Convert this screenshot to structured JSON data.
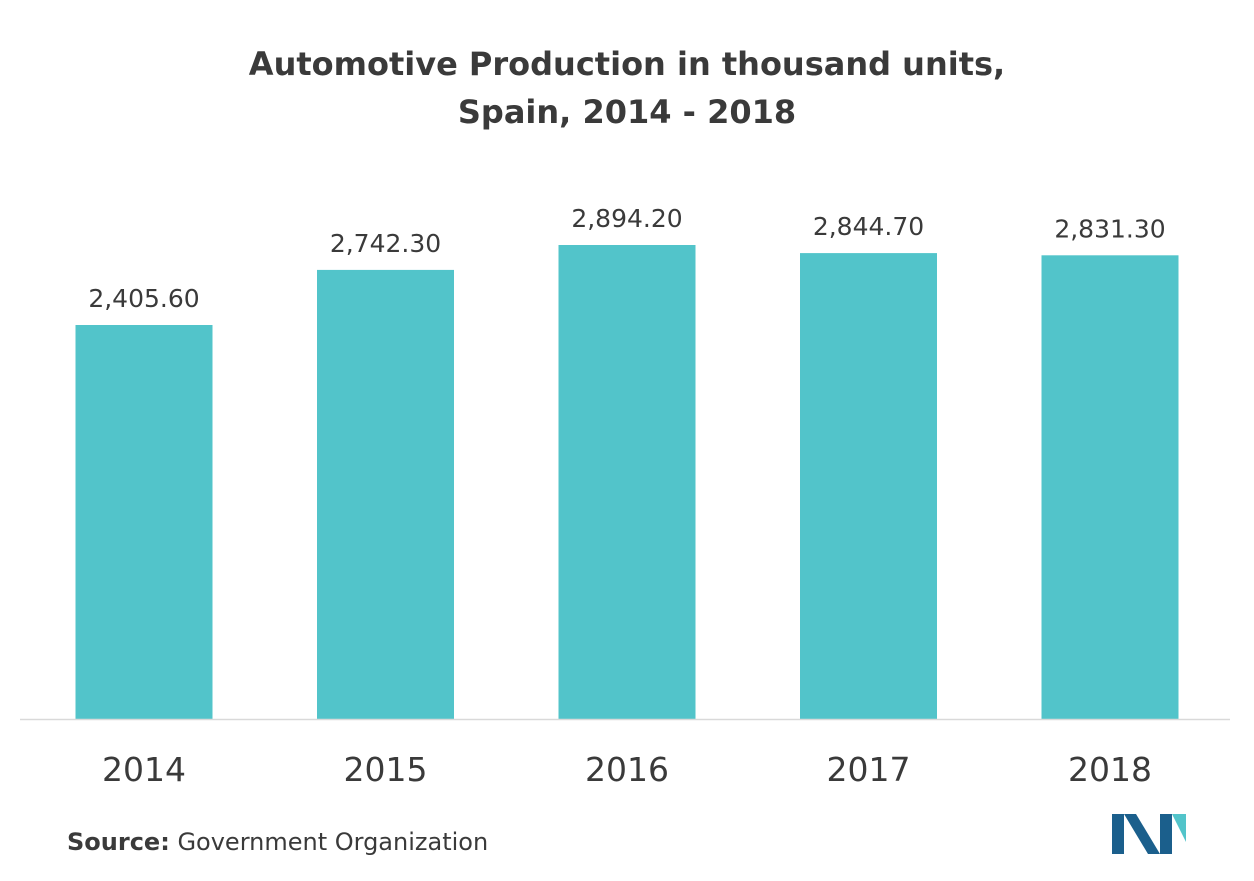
{
  "chart_data": {
    "type": "bar",
    "title_lines": [
      "Automotive Production in thousand units,",
      "Spain, 2014 - 2018"
    ],
    "categories": [
      "2014",
      "2015",
      "2016",
      "2017",
      "2018"
    ],
    "values": [
      2405.6,
      2742.3,
      2894.2,
      2844.7,
      2831.3
    ],
    "value_labels": [
      "2,405.60",
      "2,742.30",
      "2,894.20",
      "2,844.70",
      "2,831.30"
    ],
    "xlabel": "",
    "ylabel": "",
    "ylim": [
      0,
      2894.2
    ],
    "grid": false,
    "legend": "none",
    "bar_color": "#52c4ca",
    "baseline_color": "#d9d9d9"
  },
  "source": {
    "label": "Source:",
    "text": "Government Organization"
  },
  "logo": {
    "colors": [
      "#1b5f8c",
      "#52c4ca"
    ]
  }
}
